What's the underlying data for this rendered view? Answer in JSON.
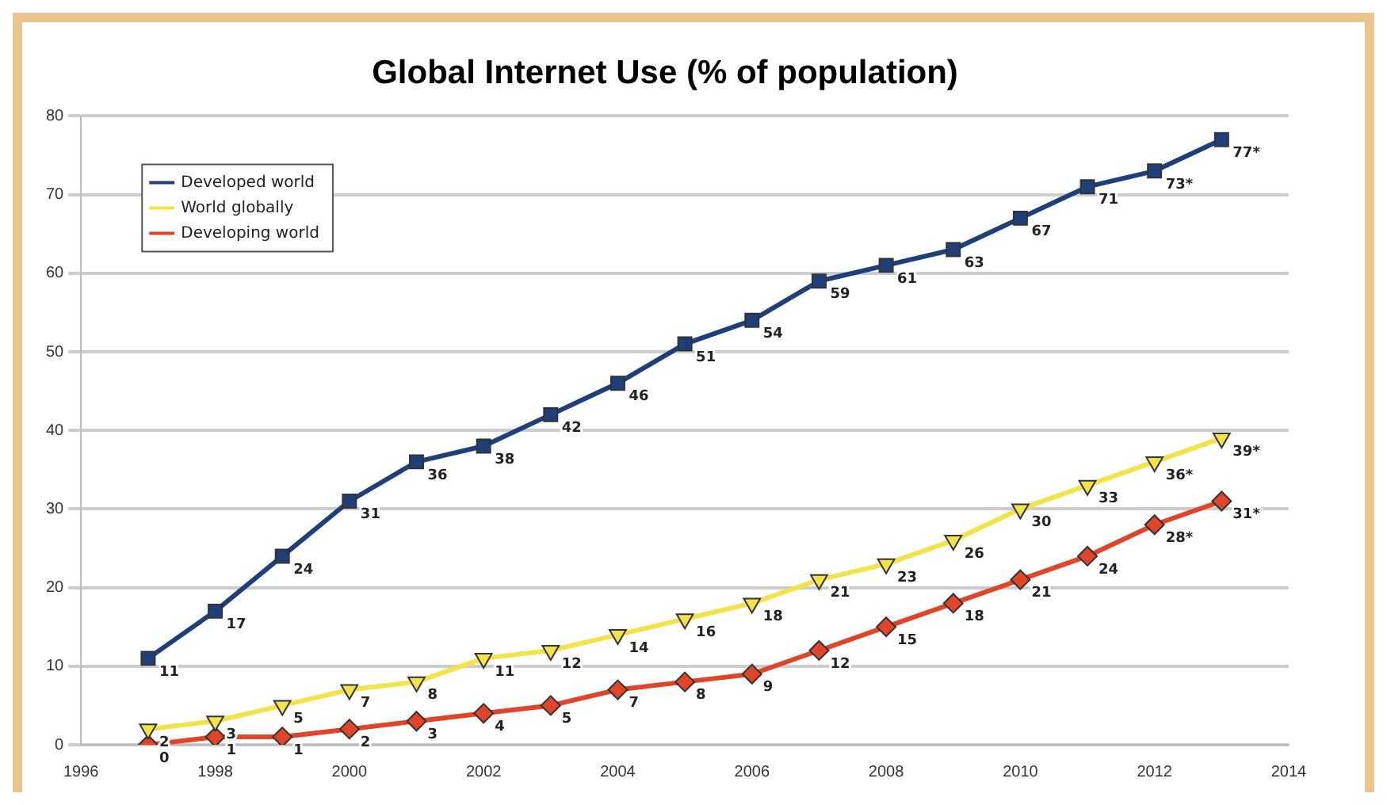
{
  "chart_data": {
    "type": "line",
    "title": "Global Internet Use (% of population)",
    "x": [
      1997,
      1998,
      1999,
      2000,
      2001,
      2002,
      2003,
      2004,
      2005,
      2006,
      2007,
      2008,
      2009,
      2010,
      2011,
      2012,
      2013
    ],
    "series": [
      {
        "name": "Developed world",
        "color": "#1f3f7a",
        "marker": "square",
        "values": [
          11,
          17,
          24,
          31,
          36,
          38,
          42,
          46,
          51,
          54,
          59,
          61,
          63,
          67,
          71,
          73,
          77
        ],
        "value_labels": [
          "11",
          "17",
          "24",
          "31",
          "36",
          "38",
          "42",
          "46",
          "51",
          "54",
          "59",
          "61",
          "63",
          "67",
          "71",
          "73*",
          "77*"
        ]
      },
      {
        "name": "World globally",
        "color": "#f2e34a",
        "marker": "triangle",
        "values": [
          2,
          3,
          5,
          7,
          8,
          11,
          12,
          14,
          16,
          18,
          21,
          23,
          26,
          30,
          33,
          36,
          39
        ],
        "value_labels": [
          "2",
          "3",
          "5",
          "7",
          "8",
          "11",
          "12",
          "14",
          "16",
          "18",
          "21",
          "23",
          "26",
          "30",
          "33",
          "36*",
          "39*"
        ]
      },
      {
        "name": "Developing world",
        "color": "#e0452a",
        "marker": "diamond",
        "values": [
          0,
          1,
          1,
          2,
          3,
          4,
          5,
          7,
          8,
          9,
          12,
          15,
          18,
          21,
          24,
          28,
          31
        ],
        "value_labels": [
          "0",
          "1",
          "1",
          "2",
          "3",
          "4",
          "5",
          "7",
          "8",
          "9",
          "12",
          "15",
          "18",
          "21",
          "24",
          "28*",
          "31*"
        ]
      }
    ],
    "xlim": [
      1996,
      2014
    ],
    "xticks": [
      1996,
      1998,
      2000,
      2002,
      2004,
      2006,
      2008,
      2010,
      2012,
      2014
    ],
    "ylim": [
      0,
      80
    ],
    "yticks": [
      0,
      10,
      20,
      30,
      40,
      50,
      60,
      70,
      80
    ],
    "grid": "y",
    "legend": "top left",
    "line_style": "solid"
  }
}
